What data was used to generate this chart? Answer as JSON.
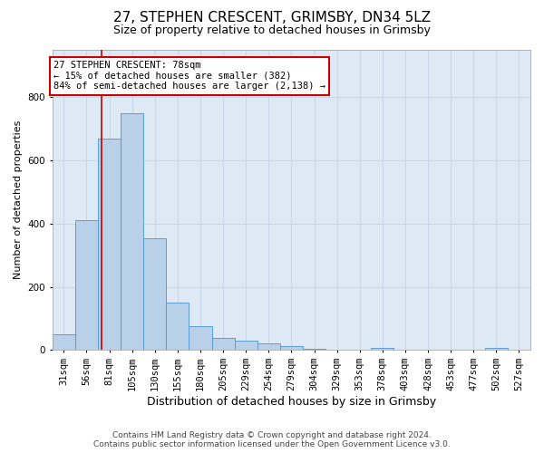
{
  "title1": "27, STEPHEN CRESCENT, GRIMSBY, DN34 5LZ",
  "title2": "Size of property relative to detached houses in Grimsby",
  "xlabel": "Distribution of detached houses by size in Grimsby",
  "ylabel": "Number of detached properties",
  "footer1": "Contains HM Land Registry data © Crown copyright and database right 2024.",
  "footer2": "Contains public sector information licensed under the Open Government Licence v3.0.",
  "bar_color": "#b8d0e8",
  "bar_edge_color": "#5b9bd5",
  "grid_color": "#c8d8ea",
  "annotation_box_color": "#cc0000",
  "vline_color": "#cc0000",
  "background_color": "#ddeaf6",
  "bin_labels": [
    "31sqm",
    "56sqm",
    "81sqm",
    "105sqm",
    "130sqm",
    "155sqm",
    "180sqm",
    "205sqm",
    "229sqm",
    "254sqm",
    "279sqm",
    "304sqm",
    "329sqm",
    "353sqm",
    "378sqm",
    "403sqm",
    "428sqm",
    "453sqm",
    "477sqm",
    "502sqm",
    "527sqm"
  ],
  "bar_values": [
    50,
    410,
    670,
    750,
    355,
    150,
    75,
    38,
    30,
    20,
    13,
    5,
    0,
    0,
    8,
    0,
    0,
    0,
    0,
    8,
    0
  ],
  "property_label": "27 STEPHEN CRESCENT: 78sqm",
  "annotation_line1": "← 15% of detached houses are smaller (382)",
  "annotation_line2": "84% of semi-detached houses are larger (2,138) →",
  "ylim": [
    0,
    950
  ],
  "vline_x_index": 1.65,
  "n_bins": 21,
  "title1_fontsize": 11,
  "title2_fontsize": 9,
  "ylabel_fontsize": 8,
  "xlabel_fontsize": 9,
  "tick_fontsize": 7.5,
  "annot_fontsize": 7.5,
  "footer_fontsize": 6.5
}
